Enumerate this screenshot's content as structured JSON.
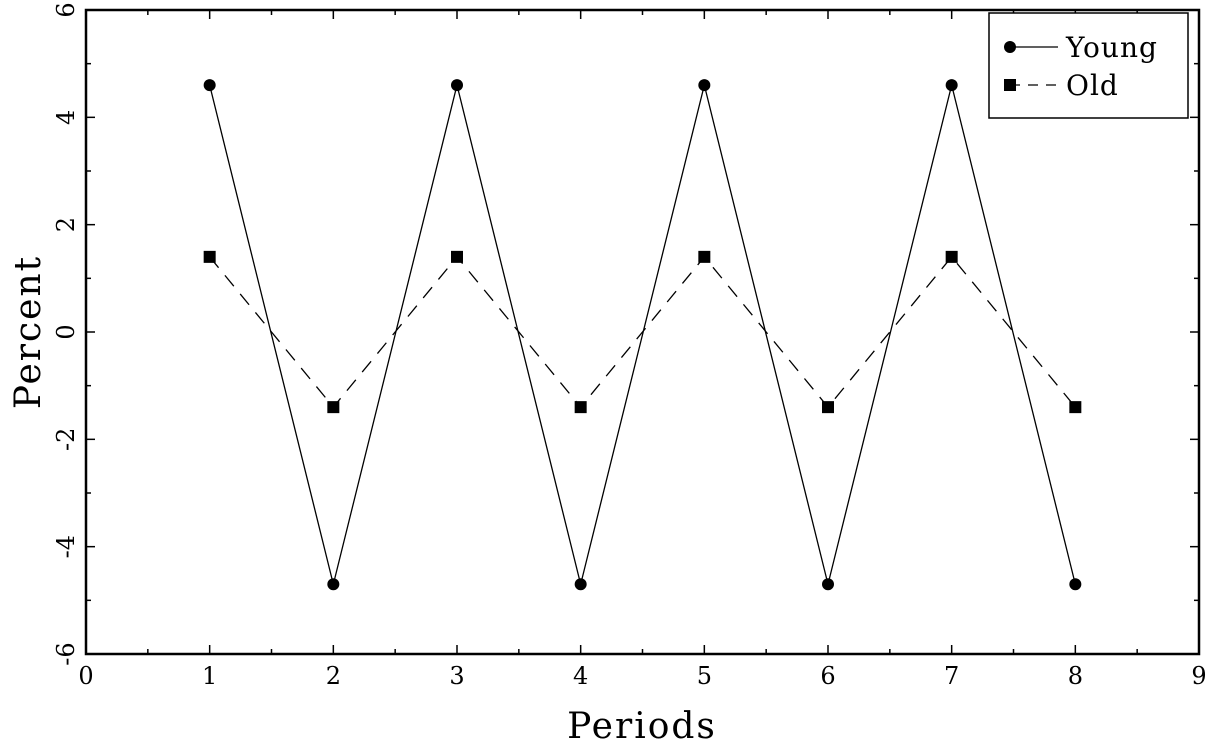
{
  "chart_data": {
    "type": "line",
    "title": "",
    "xlabel": "Periods",
    "ylabel": "Percent",
    "xlim": [
      0,
      9
    ],
    "ylim": [
      -6,
      6
    ],
    "xticks": [
      0,
      1,
      2,
      3,
      4,
      5,
      6,
      7,
      8,
      9
    ],
    "yticks": [
      -6,
      -4,
      -2,
      0,
      2,
      4,
      6
    ],
    "grid": false,
    "legend_position": "top-right",
    "series": [
      {
        "name": "Young",
        "marker": "circle",
        "line_style": "solid",
        "color": "#000000",
        "x": [
          1,
          2,
          3,
          4,
          5,
          6,
          7,
          8
        ],
        "y": [
          4.6,
          -4.7,
          4.6,
          -4.7,
          4.6,
          -4.7,
          4.6,
          -4.7
        ]
      },
      {
        "name": "Old",
        "marker": "square",
        "line_style": "dashed",
        "color": "#000000",
        "x": [
          1,
          2,
          3,
          4,
          5,
          6,
          7,
          8
        ],
        "y": [
          1.4,
          -1.4,
          1.4,
          -1.4,
          1.4,
          -1.4,
          1.4,
          -1.4
        ]
      }
    ]
  }
}
